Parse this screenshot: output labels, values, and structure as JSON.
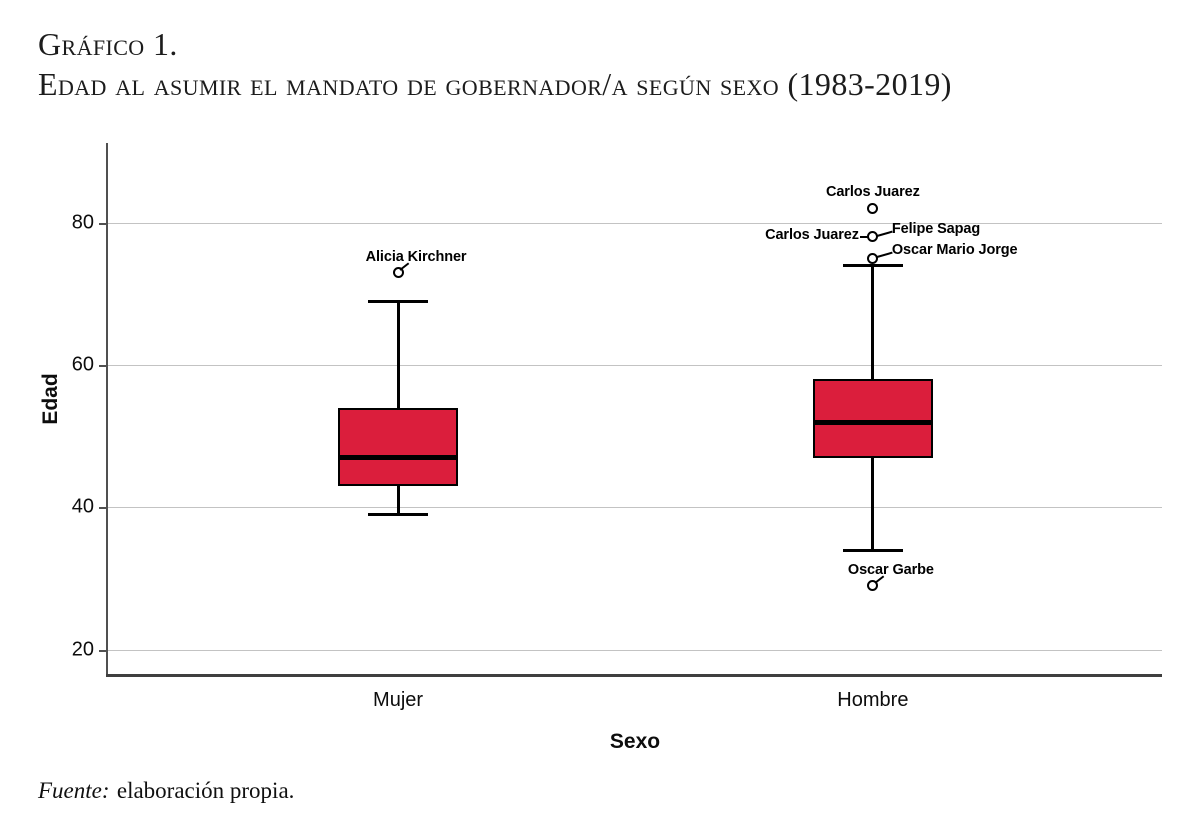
{
  "figure": {
    "title_line1": "Gráfico 1.",
    "title_line2": "Edad al asumir el mandato de gobernador/a según sexo (1983-2019)",
    "source_prefix": "Fuente:",
    "source_text": "elaboración propia."
  },
  "chart_data": {
    "type": "boxplot",
    "title": "Edad al asumir el mandato de gobernador/a según sexo (1983-2019)",
    "xlabel": "Sexo",
    "ylabel": "Edad",
    "categories": [
      "Mujer",
      "Hombre"
    ],
    "yticks": [
      80,
      60,
      40,
      20
    ],
    "ylim": [
      16.6,
      91.2
    ],
    "grid": "horizontal",
    "boxes": [
      {
        "category": "Mujer",
        "whisker_low": 39,
        "q1": 43,
        "median": 47,
        "q3": 54,
        "whisker_high": 69,
        "outliers": [
          {
            "value": 73,
            "names": [
              "Alicia Kirchner"
            ],
            "label_sides": [
              "above"
            ],
            "tail": true
          }
        ]
      },
      {
        "category": "Hombre",
        "whisker_low": 34,
        "q1": 47,
        "median": 52,
        "q3": 58,
        "whisker_high": 74,
        "outliers": [
          {
            "value": 82,
            "names": [
              "Carlos Juarez"
            ],
            "label_sides": [
              "above"
            ],
            "tail": false
          },
          {
            "value": 78,
            "names": [
              "Carlos Juarez",
              "Felipe Sapag"
            ],
            "label_sides": [
              "left",
              "right"
            ],
            "tail": false
          },
          {
            "value": 75,
            "names": [
              "Oscar Mario Jorge"
            ],
            "label_sides": [
              "right"
            ],
            "tail": false
          },
          {
            "value": 29,
            "names": [
              "Oscar Garbe"
            ],
            "label_sides": [
              "above"
            ],
            "tail": true
          }
        ]
      }
    ],
    "colors": {
      "box_fill": "#DB1E3C",
      "box_border": "#000000",
      "median": "#000000",
      "gridline": "#c3c3c3",
      "axis": "#505050",
      "text": "#0d0d0d"
    }
  }
}
